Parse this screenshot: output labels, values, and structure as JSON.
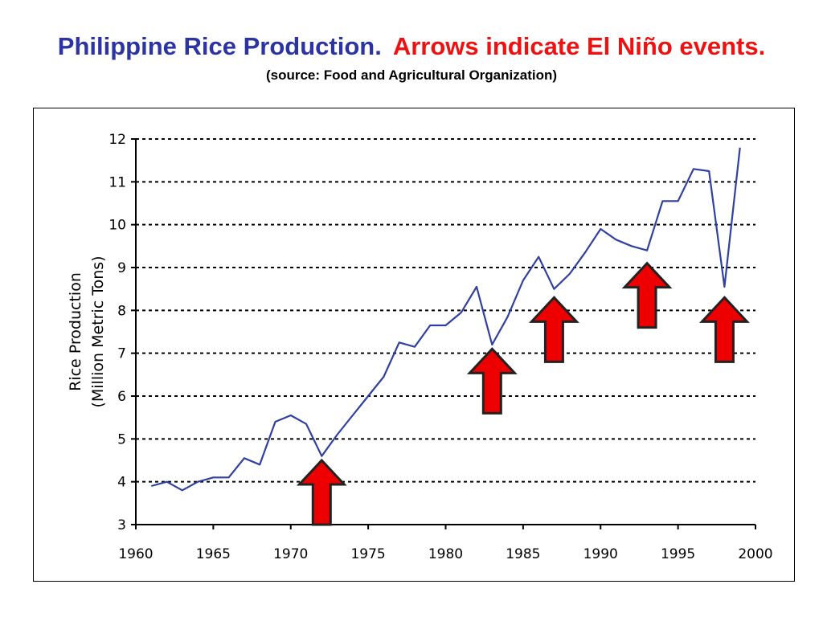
{
  "title": {
    "main": "Philippine Rice Production.",
    "highlight": "Arrows indicate El Niño events.",
    "source": "(source: Food and Agricultural Organization)"
  },
  "colors": {
    "title_main": "#2c34a4",
    "title_highlight": "#ee1111",
    "line": "#3040a0",
    "arrow_fill": "#ee0000",
    "arrow_stroke": "#222222",
    "grid": "#000000"
  },
  "chart_data": {
    "type": "line",
    "title": "Philippine Rice Production.",
    "xlabel": "",
    "ylabel_lines": [
      "Rice Production",
      "(Million Metric Tons)"
    ],
    "xlim": [
      1960,
      2000
    ],
    "ylim": [
      3,
      12
    ],
    "x_ticks": [
      1960,
      1965,
      1970,
      1975,
      1980,
      1985,
      1990,
      1995,
      2000
    ],
    "y_ticks": [
      3,
      4,
      5,
      6,
      7,
      8,
      9,
      10,
      11,
      12
    ],
    "grid": "horizontal dashed",
    "series": [
      {
        "x": [
          1961,
          1962,
          1963,
          1964,
          1965,
          1966,
          1967,
          1968,
          1969,
          1970,
          1971,
          1972,
          1973,
          1974,
          1975,
          1976,
          1977,
          1978,
          1979,
          1980,
          1981,
          1982,
          1983,
          1984,
          1985,
          1986,
          1987,
          1988,
          1989,
          1990,
          1991,
          1992,
          1993,
          1994,
          1995,
          1996,
          1997,
          1998,
          1999
        ],
        "values": [
          3.9,
          4.0,
          3.8,
          4.0,
          4.1,
          4.1,
          4.55,
          4.4,
          5.4,
          5.55,
          5.35,
          4.6,
          5.1,
          5.55,
          6.0,
          6.45,
          7.25,
          7.15,
          7.65,
          7.65,
          7.95,
          8.55,
          7.2,
          7.85,
          8.7,
          9.25,
          8.5,
          8.85,
          9.35,
          9.9,
          9.65,
          9.5,
          9.4,
          10.55,
          10.55,
          11.3,
          11.25,
          8.55,
          11.8
        ]
      }
    ],
    "annotations": {
      "type": "arrows pointing up",
      "meaning": "El Niño events",
      "x": [
        1972,
        1983,
        1987,
        1993,
        1998
      ],
      "arrow_top_values": [
        4.5,
        7.1,
        8.3,
        9.1,
        8.3
      ]
    }
  }
}
